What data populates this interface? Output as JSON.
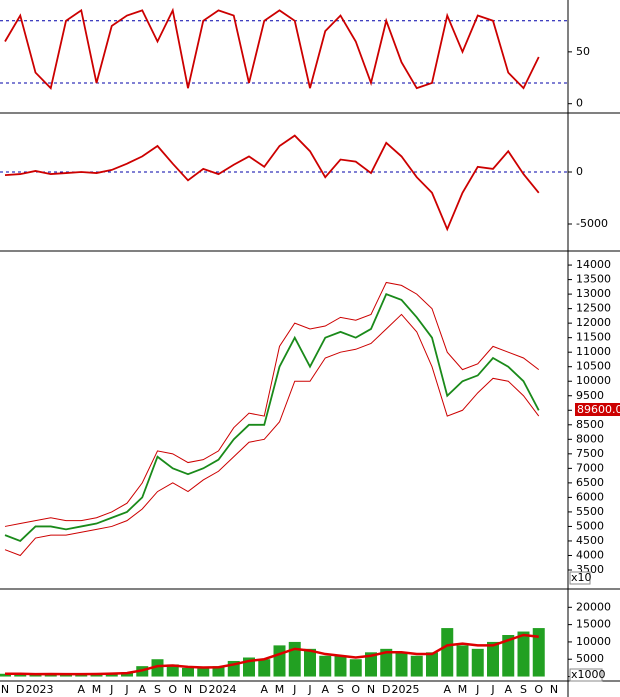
{
  "chart_data": [
    {
      "type": "line",
      "ylim": [
        -8,
        100
      ],
      "yticks": [
        0,
        50
      ],
      "ref_lines": [
        20,
        80
      ],
      "series": [
        {
          "color": "#cc0000",
          "values": [
            60,
            85,
            30,
            15,
            80,
            90,
            20,
            75,
            85,
            90,
            60,
            90,
            15,
            80,
            90,
            85,
            20,
            80,
            90,
            80,
            15,
            70,
            85,
            60,
            20,
            80,
            40,
            15,
            20,
            85,
            50,
            85,
            80,
            30,
            15,
            45,
            null
          ]
        }
      ]
    },
    {
      "type": "line",
      "ylim": [
        -7500,
        5577
      ],
      "yticks": [
        -5000,
        0
      ],
      "ref_lines": [
        0
      ],
      "series": [
        {
          "color": "#cc0000",
          "values": [
            -300,
            -200,
            100,
            -200,
            -100,
            0,
            -100,
            200,
            800,
            1500,
            2500,
            800,
            -800,
            300,
            -200,
            700,
            1500,
            500,
            2500,
            3500,
            2000,
            -500,
            1200,
            1000,
            -100,
            2800,
            1500,
            -500,
            -2000,
            -5500,
            -2000,
            500,
            300,
            2000,
            -200,
            -2000,
            null
          ]
        }
      ]
    },
    {
      "type": "line",
      "ylim": [
        2880,
        14450
      ],
      "yticks": [
        3500,
        4000,
        4500,
        5000,
        5500,
        6000,
        6500,
        7000,
        7500,
        8000,
        8500,
        9000,
        9500,
        10000,
        10500,
        11000,
        11500,
        12000,
        12500,
        13000,
        13500,
        14000
      ],
      "axis_label": "x10",
      "last_label": "89600.0",
      "series": [
        {
          "color": "#1a8a1a",
          "values": [
            4700,
            4500,
            5000,
            5000,
            4900,
            5000,
            5100,
            5300,
            5500,
            6000,
            7400,
            7000,
            6800,
            7000,
            7300,
            8000,
            8500,
            8500,
            10500,
            11500,
            10500,
            11500,
            11700,
            11500,
            11800,
            13000,
            12800,
            12200,
            11500,
            9500,
            10000,
            10200,
            10800,
            10500,
            10000,
            9000,
            null
          ]
        },
        {
          "color": "#cc0000",
          "values": [
            5000,
            5100,
            5200,
            5300,
            5200,
            5200,
            5300,
            5500,
            5800,
            6500,
            7600,
            7500,
            7200,
            7300,
            7600,
            8400,
            8900,
            8800,
            11200,
            12000,
            11800,
            11900,
            12200,
            12100,
            12300,
            13400,
            13300,
            13000,
            12500,
            11000,
            10400,
            10600,
            11200,
            11000,
            10800,
            10400,
            null
          ]
        },
        {
          "color": "#cc0000",
          "values": [
            4200,
            4000,
            4600,
            4700,
            4700,
            4800,
            4900,
            5000,
            5200,
            5600,
            6200,
            6500,
            6200,
            6600,
            6900,
            7400,
            7900,
            8000,
            8600,
            10000,
            10000,
            10800,
            11000,
            11100,
            11300,
            11800,
            12300,
            11700,
            10500,
            8800,
            9000,
            9600,
            10100,
            10000,
            9500,
            8800,
            null
          ]
        }
      ]
    },
    {
      "type": "bar",
      "ylim": [
        -1000,
        25000
      ],
      "yticks": [
        0,
        5000,
        10000,
        15000,
        20000
      ],
      "axis_label": "x1000",
      "categories": [
        "N",
        "D",
        "2023",
        null,
        null,
        "A",
        "M",
        "J",
        "J",
        "A",
        "S",
        "O",
        "N",
        "D",
        "2024",
        null,
        null,
        "A",
        "M",
        "J",
        "J",
        "A",
        "S",
        "O",
        "N",
        "D",
        "2025",
        null,
        null,
        "A",
        "M",
        "J",
        "J",
        "A",
        "S",
        "O",
        "N"
      ],
      "series": [
        {
          "color": "#22a022",
          "values": [
            800,
            600,
            700,
            900,
            600,
            700,
            800,
            900,
            1200,
            3000,
            5000,
            3500,
            2500,
            2500,
            3000,
            4500,
            5500,
            5000,
            9000,
            10000,
            8000,
            6000,
            6000,
            5000,
            7000,
            8000,
            7000,
            6000,
            7000,
            14000,
            9000,
            8000,
            10000,
            12000,
            13000,
            14000,
            null
          ]
        },
        {
          "color": "#dd0000",
          "values": [
            800,
            800,
            700,
            750,
            700,
            700,
            750,
            850,
            1000,
            1800,
            3000,
            3200,
            2800,
            2600,
            2700,
            3500,
            4500,
            5000,
            6500,
            8000,
            7500,
            6500,
            6000,
            5500,
            6000,
            7000,
            7000,
            6500,
            6500,
            9000,
            9500,
            9000,
            9000,
            10500,
            12000,
            11500,
            null
          ]
        }
      ]
    }
  ]
}
